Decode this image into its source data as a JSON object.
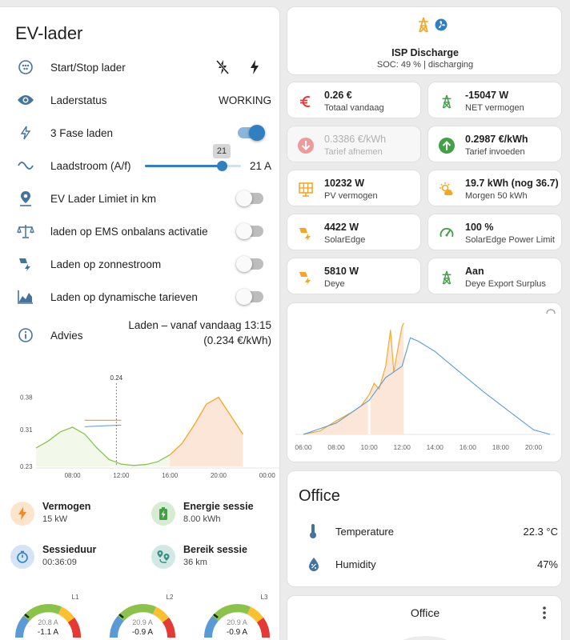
{
  "ev": {
    "title": "EV-lader",
    "rows": {
      "startstop": {
        "label": "Start/Stop lader"
      },
      "status": {
        "label": "Laderstatus",
        "value": "WORKING"
      },
      "fase": {
        "label": "3 Fase laden",
        "on": true
      },
      "laadstroom": {
        "label": "Laadstroom (A/f)",
        "value": "21 A",
        "tooltip": "21",
        "level": 0.8
      },
      "limiet": {
        "label": "EV Lader Limiet in km",
        "on": false
      },
      "ems": {
        "label": "laden op EMS onbalans activatie",
        "on": false
      },
      "zon": {
        "label": "Laden op zonnestroom",
        "on": false
      },
      "dyn": {
        "label": "Laden op dynamische tarieven",
        "on": false
      },
      "advies": {
        "label": "Advies",
        "line1": "Laden – vanaf vandaag 13:15",
        "line2": "(0.234 €/kWh)"
      }
    },
    "stats": {
      "vermogen": {
        "title": "Vermogen",
        "value": "15 kW"
      },
      "energie": {
        "title": "Energie sessie",
        "value": "8.00 kWh"
      },
      "duur": {
        "title": "Sessieduur",
        "value": "00:36:09"
      },
      "bereik": {
        "title": "Bereik sessie",
        "value": "36 km"
      }
    },
    "gauges": [
      {
        "phase": "L1",
        "max": "20.8 A",
        "value": "-1.1 A"
      },
      {
        "phase": "L2",
        "max": "20.9 A",
        "value": "-0.9 A"
      },
      {
        "phase": "L3",
        "max": "20.9 A",
        "value": "-0.9 A"
      }
    ]
  },
  "isp": {
    "title": "ISP Discharge",
    "subtitle": "SOC: 49 % | discharging"
  },
  "tiles": [
    {
      "value": "0.26 €",
      "label": "Totaal vandaag",
      "icon": "euro-icon",
      "color": "#e53935"
    },
    {
      "value": "-15047 W",
      "label": "NET vermogen",
      "icon": "transmission-tower-icon",
      "color": "#43a047"
    },
    {
      "value": "0.3386 €/kWh",
      "label": "Tarief afnemen",
      "icon": "arrow-down-circle-icon",
      "color": "#ef9a9a"
    },
    {
      "value": "0.2987 €/kWh",
      "label": "Tarief invoeden",
      "icon": "arrow-up-circle-icon",
      "color": "#43a047"
    },
    {
      "value": "10232 W",
      "label": "PV vermogen",
      "icon": "solar-panel-icon",
      "color": "#f5a623"
    },
    {
      "value": "19.7 kWh (nog 36.7)",
      "label": "Morgen 50 kWh",
      "icon": "weather-partly-sunny-icon",
      "color": "#f5a623"
    },
    {
      "value": "4422 W",
      "label": "SolarEdge",
      "icon": "solar-power-icon",
      "color": "#f5a623"
    },
    {
      "value": "100 %",
      "label": "SolarEdge Power Limit",
      "icon": "gauge-icon",
      "color": "#43a047"
    },
    {
      "value": "5810 W",
      "label": "Deye",
      "icon": "solar-power-icon",
      "color": "#f5a623"
    },
    {
      "value": "Aan",
      "label": "Deye Export Surplus",
      "icon": "transmission-tower-export-icon",
      "color": "#43a047"
    }
  ],
  "office": {
    "title": "Office",
    "temperature": {
      "label": "Temperature",
      "value": "22.3 °C"
    },
    "humidity": {
      "label": "Humidity",
      "value": "47%"
    }
  },
  "office2": {
    "title": "Office"
  },
  "chart_data": [
    {
      "type": "line",
      "title": "",
      "x_ticks": [
        "08:00",
        "12:00",
        "16:00",
        "20:00",
        "00:00"
      ],
      "y_ticks": [
        "0.38",
        "0.31",
        "0.23"
      ],
      "ylim": [
        0.23,
        0.4
      ],
      "now_marker_label": "0.24",
      "series": [
        {
          "color": "#8bc34a",
          "x": [
            5.0,
            6.0,
            7.0,
            8.0,
            9.0,
            10.0,
            11.0,
            11.5
          ],
          "y": [
            0.27,
            0.285,
            0.305,
            0.315,
            0.3,
            0.27,
            0.245,
            0.24
          ]
        },
        {
          "color": "#8bc34a",
          "x": [
            11.5,
            12.0,
            13.0,
            14.0,
            15.0,
            16.0
          ],
          "y": [
            0.24,
            0.235,
            0.232,
            0.234,
            0.24,
            0.255
          ]
        },
        {
          "color": "#f5a623",
          "x": [
            16.0,
            17.0,
            18.0,
            19.0,
            20.0,
            21.0,
            22.0
          ],
          "y": [
            0.255,
            0.28,
            0.32,
            0.365,
            0.38,
            0.34,
            0.3
          ]
        }
      ],
      "reference_line": {
        "color": "#f5a623",
        "x": [
          9.0,
          12.0
        ],
        "y": 0.33
      }
    },
    {
      "type": "line",
      "title": "",
      "x_ticks": [
        "06:00",
        "08:00",
        "10:00",
        "12:00",
        "14:00",
        "16:00",
        "18:00",
        "20:00"
      ],
      "xlim": [
        6,
        21
      ],
      "ylim": [
        0,
        10
      ],
      "series": [
        {
          "color": "#f5a623",
          "x": [
            6.0,
            7.0,
            8.0,
            9.0,
            9.5,
            10.0,
            10.3,
            10.6,
            11.0,
            11.3,
            11.5,
            11.8,
            12.0,
            12.1
          ],
          "y": [
            0.0,
            0.3,
            1.2,
            2.0,
            2.5,
            3.5,
            4.5,
            4.0,
            6.0,
            9.2,
            5.5,
            8.0,
            9.5,
            9.8
          ]
        },
        {
          "color": "#5b9bd5",
          "x": [
            6.0,
            8.0,
            10.0,
            11.0,
            12.0,
            12.5,
            13.0,
            14.0,
            15.0,
            16.0,
            17.0,
            18.0,
            19.0,
            20.0,
            21.0
          ],
          "y": [
            0.0,
            1.0,
            3.0,
            5.0,
            6.0,
            8.5,
            8.2,
            7.3,
            6.1,
            4.9,
            3.7,
            2.6,
            1.5,
            0.4,
            0.0
          ]
        }
      ]
    }
  ]
}
